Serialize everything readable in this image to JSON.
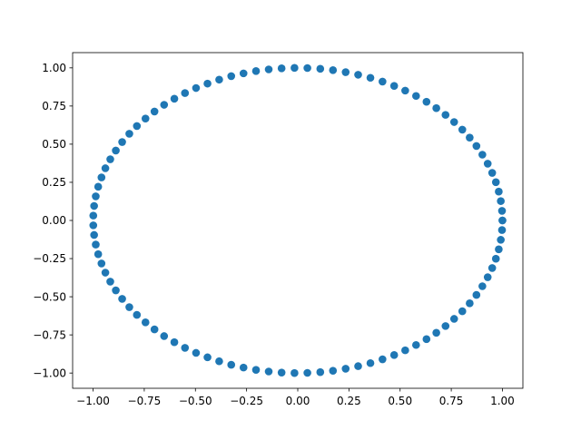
{
  "chart_data": {
    "type": "scatter",
    "title": "",
    "xlabel": "",
    "ylabel": "",
    "xlim": [
      -1.1,
      1.1
    ],
    "ylim": [
      -1.1,
      1.1
    ],
    "xticks": [
      -1.0,
      -0.75,
      -0.5,
      -0.25,
      0.0,
      0.25,
      0.5,
      0.75,
      1.0
    ],
    "xtick_labels": [
      "−1.00",
      "−0.75",
      "−0.50",
      "−0.25",
      "0.00",
      "0.25",
      "0.50",
      "0.75",
      "1.00"
    ],
    "yticks": [
      -1.0,
      -0.75,
      -0.5,
      -0.25,
      0.0,
      0.25,
      0.5,
      0.75,
      1.0
    ],
    "ytick_labels": [
      "−1.00",
      "−0.75",
      "−0.50",
      "−0.25",
      "0.00",
      "0.25",
      "0.50",
      "0.75",
      "1.00"
    ],
    "grid": false,
    "legend": "none",
    "marker_color": "#1f77b4",
    "series": [
      {
        "x": [
          1.0,
          0.998,
          0.992,
          0.982,
          0.968,
          0.95,
          0.928,
          0.902,
          0.873,
          0.84,
          0.804,
          0.764,
          0.722,
          0.677,
          0.629,
          0.578,
          0.525,
          0.471,
          0.414,
          0.355,
          0.295,
          0.234,
          0.172,
          0.11,
          0.047,
          -0.016,
          -0.079,
          -0.142,
          -0.204,
          -0.265,
          -0.325,
          -0.384,
          -0.441,
          -0.497,
          -0.551,
          -0.603,
          -0.653,
          -0.7,
          -0.744,
          -0.786,
          -0.823,
          -0.858,
          -0.889,
          -0.916,
          -0.94,
          -0.959,
          -0.975,
          -0.987,
          -0.995,
          -0.999,
          -0.999,
          -0.995,
          -0.987,
          -0.975,
          -0.959,
          -0.94,
          -0.916,
          -0.889,
          -0.858,
          -0.823,
          -0.786,
          -0.744,
          -0.7,
          -0.653,
          -0.603,
          -0.551,
          -0.497,
          -0.441,
          -0.384,
          -0.325,
          -0.265,
          -0.204,
          -0.142,
          -0.079,
          -0.016,
          0.047,
          0.11,
          0.172,
          0.234,
          0.295,
          0.355,
          0.414,
          0.471,
          0.525,
          0.578,
          0.629,
          0.677,
          0.722,
          0.764,
          0.804,
          0.84,
          0.873,
          0.902,
          0.928,
          0.95,
          0.968,
          0.982,
          0.992,
          0.998,
          1.0
        ],
        "y": [
          0.0,
          0.063,
          0.127,
          0.189,
          0.251,
          0.312,
          0.372,
          0.431,
          0.488,
          0.543,
          0.595,
          0.645,
          0.692,
          0.736,
          0.778,
          0.816,
          0.851,
          0.882,
          0.91,
          0.935,
          0.955,
          0.972,
          0.985,
          0.994,
          0.999,
          1.0,
          0.997,
          0.99,
          0.979,
          0.964,
          0.946,
          0.923,
          0.897,
          0.868,
          0.835,
          0.798,
          0.758,
          0.714,
          0.668,
          0.619,
          0.568,
          0.514,
          0.458,
          0.401,
          0.342,
          0.282,
          0.221,
          0.158,
          0.095,
          0.032,
          -0.032,
          -0.095,
          -0.158,
          -0.221,
          -0.282,
          -0.342,
          -0.401,
          -0.458,
          -0.514,
          -0.568,
          -0.619,
          -0.668,
          -0.714,
          -0.758,
          -0.798,
          -0.835,
          -0.868,
          -0.897,
          -0.923,
          -0.946,
          -0.964,
          -0.979,
          -0.99,
          -0.997,
          -1.0,
          -0.999,
          -0.994,
          -0.985,
          -0.972,
          -0.955,
          -0.935,
          -0.91,
          -0.882,
          -0.851,
          -0.816,
          -0.778,
          -0.736,
          -0.692,
          -0.645,
          -0.595,
          -0.543,
          -0.488,
          -0.431,
          -0.372,
          -0.312,
          -0.251,
          -0.189,
          -0.127,
          -0.063,
          0.0
        ]
      }
    ]
  }
}
